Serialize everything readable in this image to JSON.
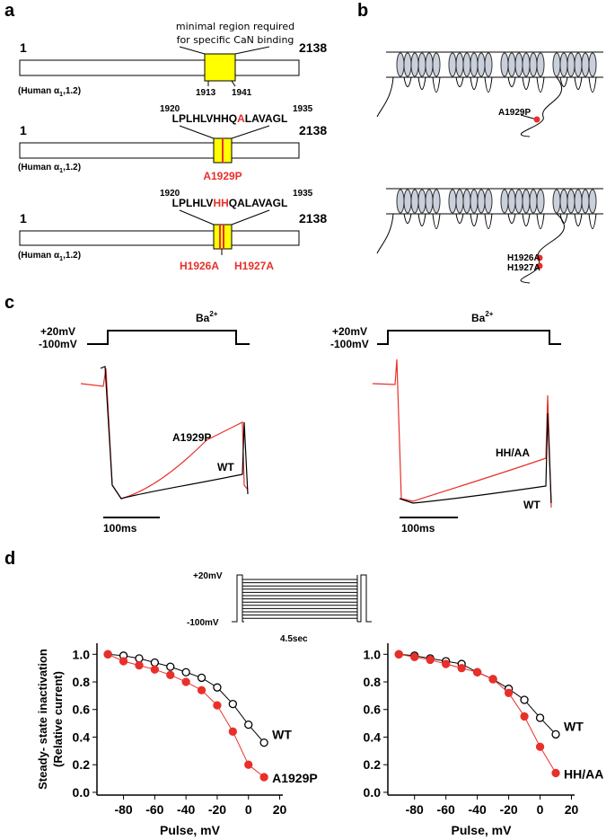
{
  "panel_labels": [
    "a",
    "b",
    "c",
    "d"
  ],
  "panel_a": {
    "start": "1",
    "end": "2138",
    "region_note": [
      "minimal region required",
      "for specific CaN binding"
    ],
    "region_start": "1913",
    "region_end": "1941",
    "species": [
      "(Human α",
      "1",
      ",1.2)"
    ],
    "seq_start": "1920",
    "seq_end": "1935",
    "seq1": [
      "LPLHLVHHQ",
      "A",
      "LAVAGL"
    ],
    "mutant1": "A1929P",
    "seq2": [
      "LPLHLV",
      "HH",
      "QALAVAGL"
    ],
    "mutant2a": "H1926A",
    "mutant2b": "H1927A"
  },
  "panel_c": {
    "v_high": "+20mV",
    "v_low": "-100mV",
    "ion": [
      "Ba",
      "2+"
    ],
    "wt": "WT",
    "hh": "HH/AA",
    "scale": "100ms"
  },
  "panel_d": {
    "v_high": "+20mV",
    "v_low": "-100mV",
    "duration": "4.5sec"
  },
  "chart_data": [
    {
      "type": "line",
      "ylabel": [
        "Steady- state inactivation",
        "(Relative current)"
      ],
      "xlabel": "Pulse, mV",
      "x": [
        -90,
        -80,
        -70,
        -60,
        -50,
        -40,
        -30,
        -20,
        -10,
        0,
        10
      ],
      "series": [
        {
          "name": "WT",
          "color": "#000000",
          "filled": false,
          "values": [
            1.0,
            0.99,
            0.97,
            0.94,
            0.91,
            0.87,
            0.83,
            0.76,
            0.64,
            0.49,
            0.36
          ]
        },
        {
          "name": "A1929P",
          "color": "#e8302a",
          "filled": true,
          "values": [
            1.0,
            0.95,
            0.92,
            0.89,
            0.85,
            0.8,
            0.74,
            0.63,
            0.44,
            0.2,
            0.11
          ]
        }
      ],
      "xlim": [
        -97,
        22
      ],
      "ylim": [
        -0.02,
        1.08
      ],
      "xticks": [
        -80,
        -60,
        -40,
        -20,
        0,
        20
      ],
      "yticks": [
        {
          "value": 0,
          "label": "0.0"
        },
        0.2,
        0.4,
        0.6,
        0.8,
        {
          "value": 1,
          "label": "1.0"
        }
      ]
    },
    {
      "type": "line",
      "xlabel": "Pulse, mV",
      "x": [
        -90,
        -80,
        -70,
        -60,
        -50,
        -40,
        -30,
        -20,
        -10,
        0,
        10
      ],
      "series": [
        {
          "name": "WT",
          "color": "#000000",
          "filled": false,
          "values": [
            1.0,
            0.99,
            0.97,
            0.95,
            0.93,
            0.87,
            0.82,
            0.75,
            0.67,
            0.54,
            0.42
          ]
        },
        {
          "name": "HH/AA",
          "color": "#e8302a",
          "filled": true,
          "values": [
            1.0,
            0.98,
            0.96,
            0.93,
            0.9,
            0.87,
            0.82,
            0.72,
            0.55,
            0.33,
            0.14
          ]
        }
      ],
      "xlim": [
        -97,
        22
      ],
      "ylim": [
        -0.02,
        1.08
      ],
      "xticks": [
        -80,
        -60,
        -40,
        -20,
        0,
        20
      ],
      "yticks": [
        {
          "value": 0,
          "label": "0.0"
        },
        0.2,
        0.4,
        0.6,
        0.8,
        {
          "value": 1,
          "label": "1.0"
        }
      ]
    }
  ]
}
